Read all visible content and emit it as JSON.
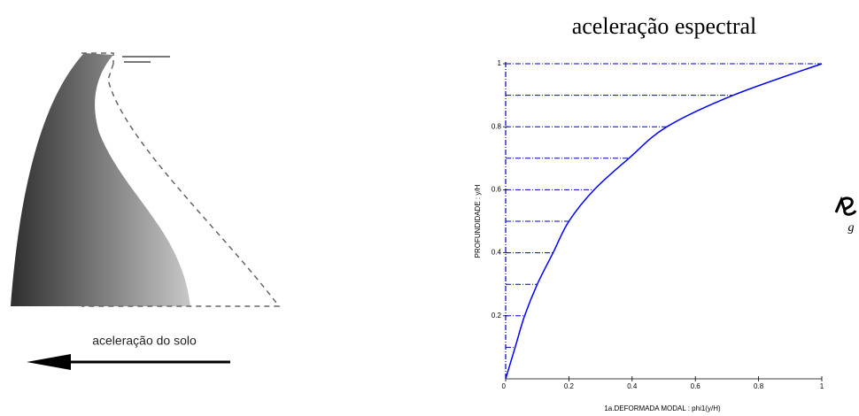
{
  "diagram": {
    "label": "aceleração do solo"
  },
  "side_symbol": "g",
  "chart_data": {
    "type": "line",
    "title": "aceleração espectral",
    "xlabel": "1a.DEFORMADA MODAL : phi1(y/H)",
    "ylabel": "PROFUNDIDADE : y/H",
    "x": [
      0,
      0.03,
      0.06,
      0.1,
      0.15,
      0.2,
      0.28,
      0.39,
      0.51,
      0.72,
      1
    ],
    "series": [
      {
        "name": "phi1",
        "color": "#0000ff",
        "values": [
          0,
          0.1,
          0.2,
          0.3,
          0.4,
          0.5,
          0.6,
          0.7,
          0.8,
          0.9,
          1
        ]
      }
    ],
    "xlim": [
      0,
      1
    ],
    "ylim": [
      0,
      1
    ],
    "xticks": [
      0,
      0.2,
      0.4,
      0.6,
      0.8,
      1
    ],
    "yticks": [
      0.2,
      0.4,
      0.6,
      0.8,
      1
    ],
    "guide_color": "#0000c0"
  }
}
